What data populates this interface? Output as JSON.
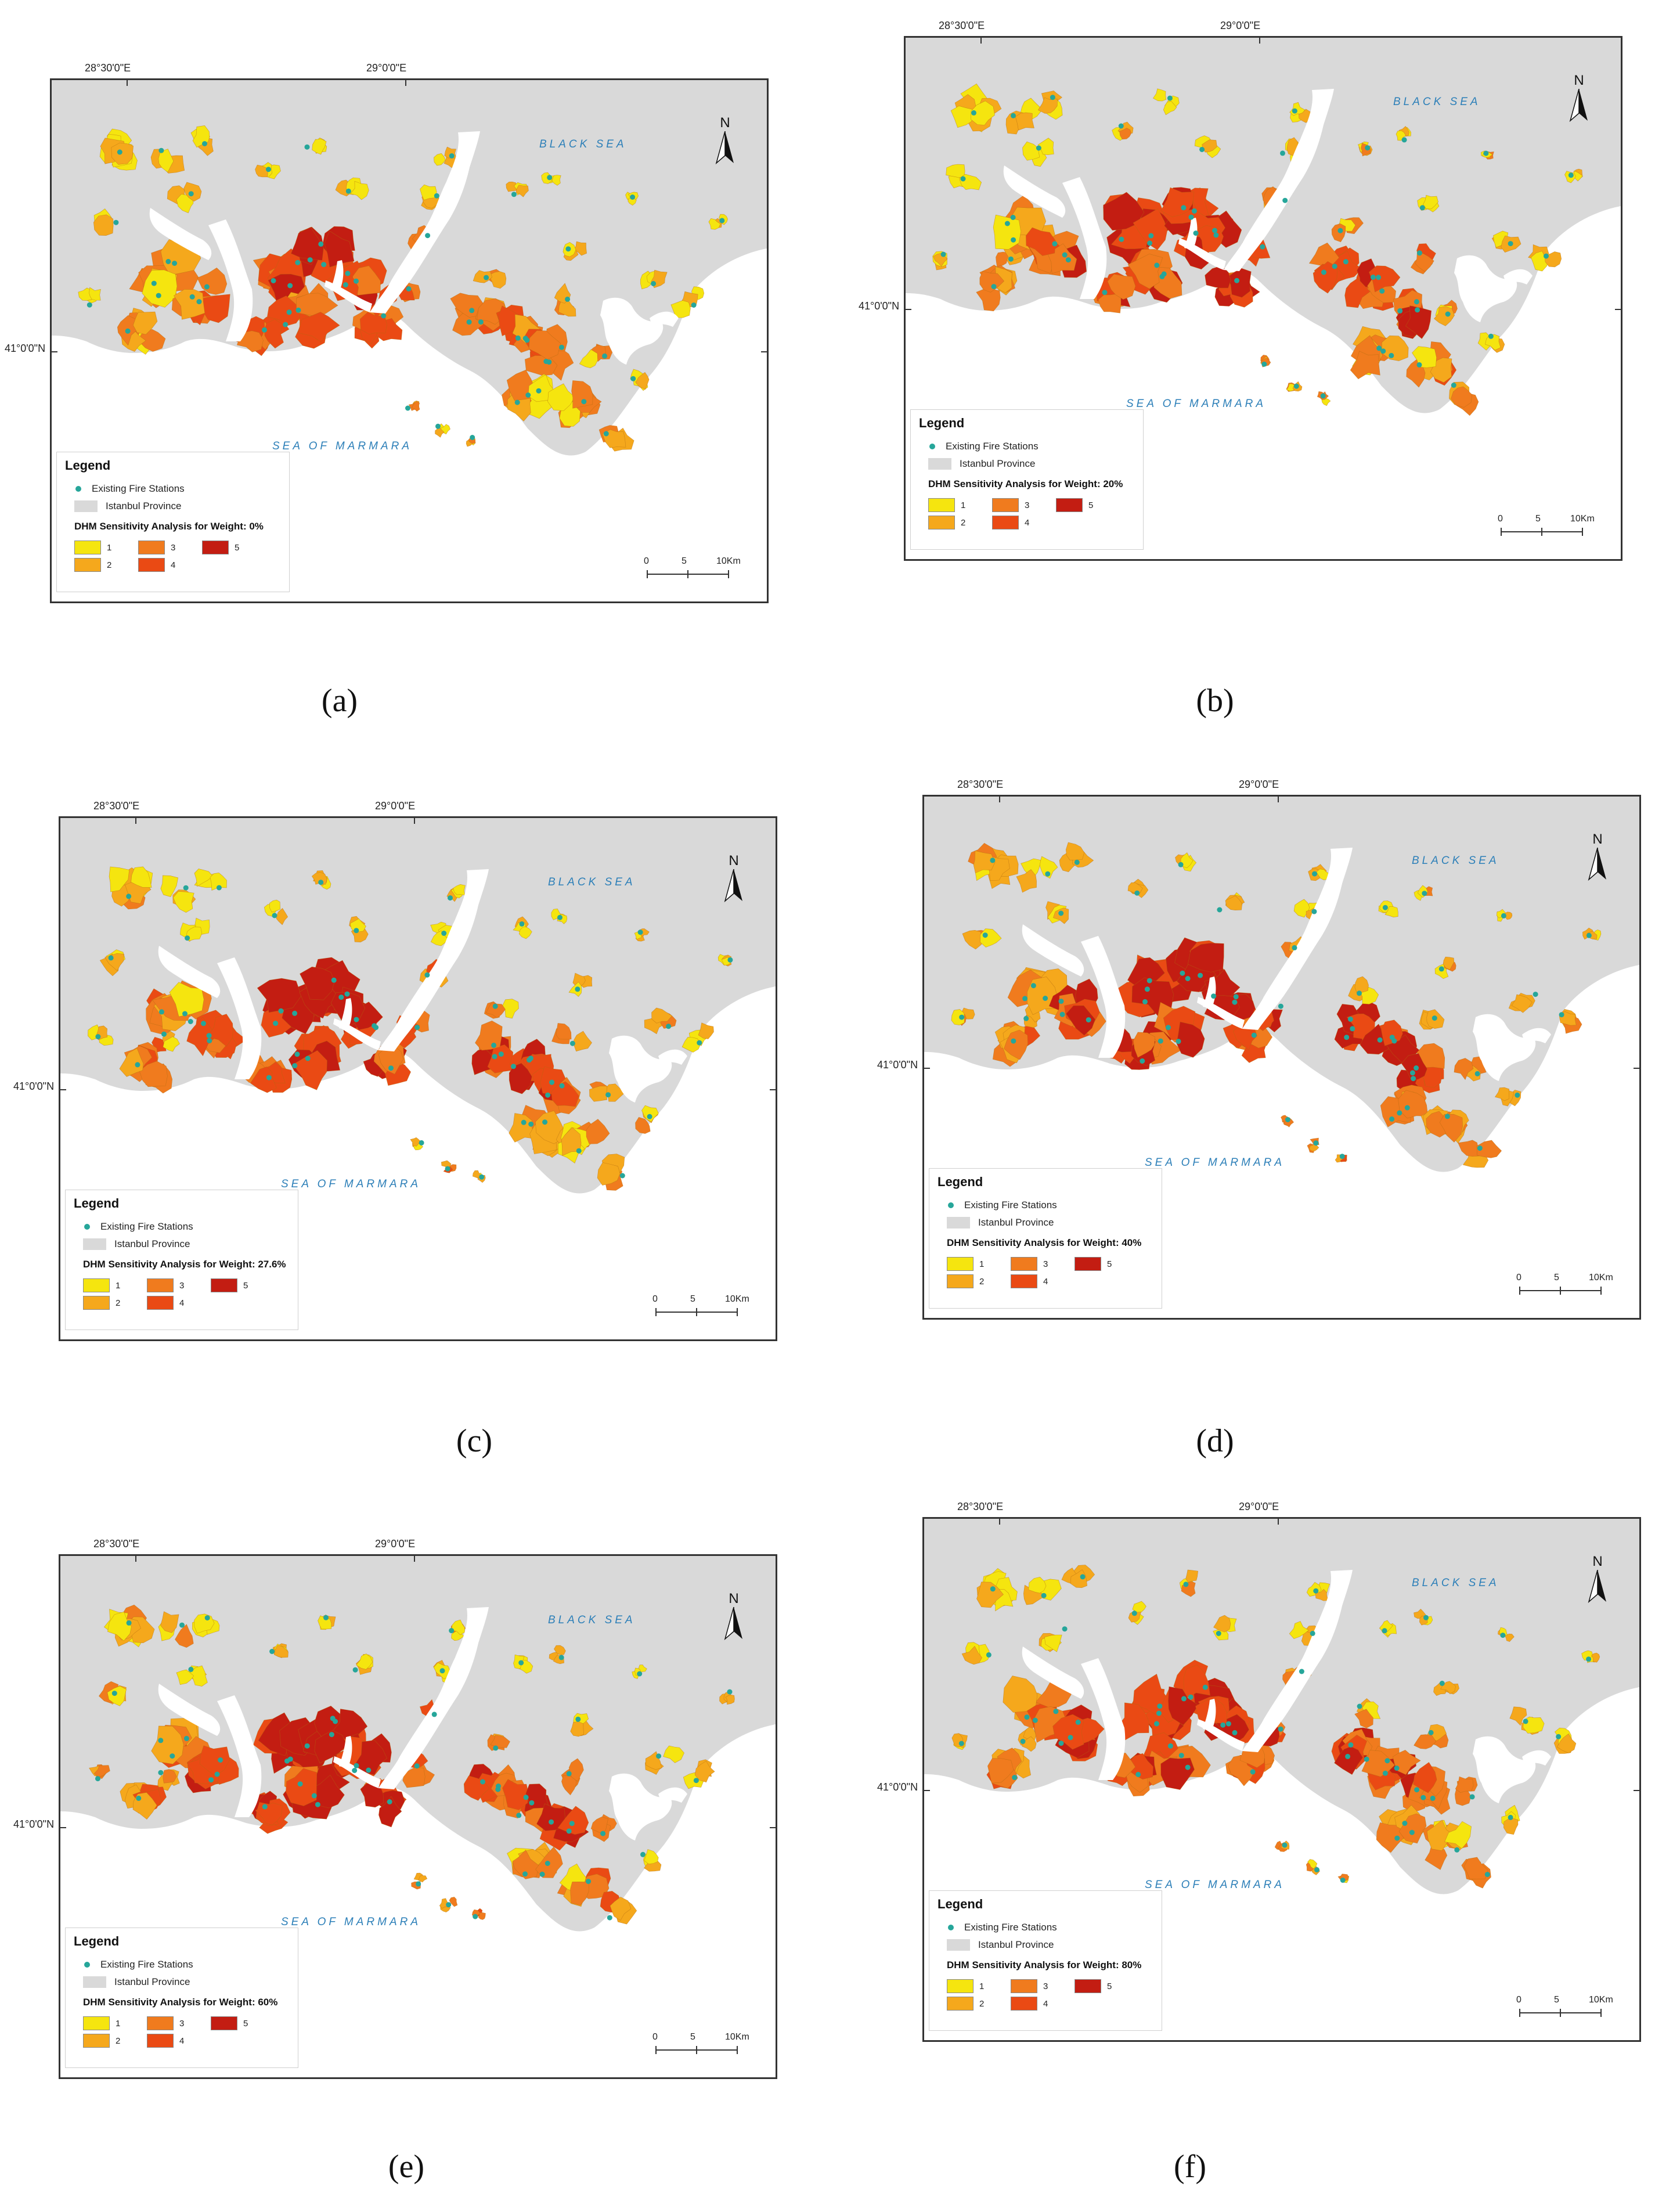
{
  "figure": {
    "panels": [
      {
        "caption": "(a)",
        "weight_label": "DHM Sensitivity Analysis for Weight: 0%"
      },
      {
        "caption": "(b)",
        "weight_label": "DHM Sensitivity Analysis for Weight: 20%"
      },
      {
        "caption": "(c)",
        "weight_label": "DHM Sensitivity Analysis for Weight: 27.6%"
      },
      {
        "caption": "(d)",
        "weight_label": "DHM Sensitivity Analysis for Weight: 40%"
      },
      {
        "caption": "(e)",
        "weight_label": "DHM Sensitivity Analysis for Weight: 60%"
      },
      {
        "caption": "(f)",
        "weight_label": "DHM Sensitivity Analysis for Weight: 80%"
      }
    ]
  },
  "map_text": {
    "lon_label_1": "28°30'0\"E",
    "lon_label_2": "29°0'0\"E",
    "lat_label": "41°0'0\"N",
    "black_sea": "BLACK SEA",
    "sea_of_marmara": "SEA OF MARMARA",
    "north": "N"
  },
  "legend": {
    "title": "Legend",
    "stations_label": "Existing Fire Stations",
    "province_label": "Istanbul Province",
    "classes": [
      "1",
      "2",
      "3",
      "4",
      "5"
    ]
  },
  "scale": {
    "labels": [
      "0",
      "5",
      "10Km"
    ]
  },
  "colors": {
    "province": "#d9d9d9",
    "water": "#ffffff",
    "station": "#26a69a",
    "class_1": "#f5e50f",
    "class_2": "#f5a81c",
    "class_3": "#f07b1e",
    "class_4": "#ea4a14",
    "class_5": "#c31d12"
  }
}
